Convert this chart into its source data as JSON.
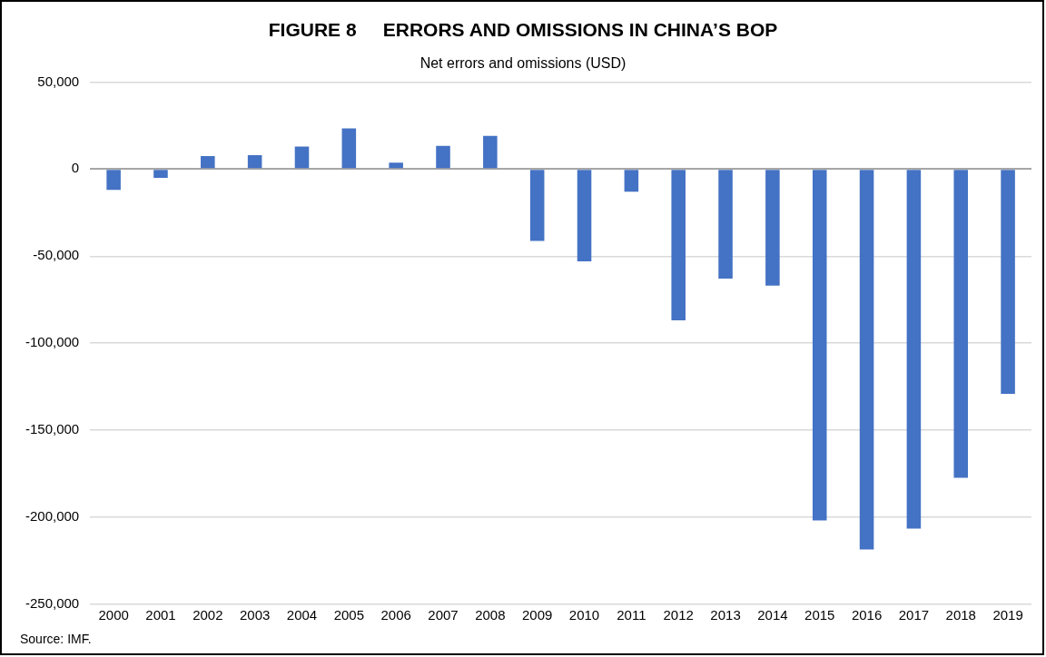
{
  "chart_data": {
    "type": "bar",
    "title": "FIGURE 8     ERRORS AND OMISSIONS IN CHINA’S BOP",
    "subtitle": "Net errors and omissions (USD)",
    "categories": [
      "2000",
      "2001",
      "2002",
      "2003",
      "2004",
      "2005",
      "2006",
      "2007",
      "2008",
      "2009",
      "2010",
      "2011",
      "2012",
      "2013",
      "2014",
      "2015",
      "2016",
      "2017",
      "2018",
      "2019"
    ],
    "values": [
      -12000,
      -5000,
      7500,
      8000,
      13000,
      23400,
      3700,
      13300,
      19100,
      -41200,
      -53000,
      -13000,
      -86900,
      -62900,
      -66900,
      -201800,
      -218500,
      -206500,
      -177300,
      -129100
    ],
    "color": "#4472c4",
    "ylim": [
      -250000,
      50000
    ],
    "yticks": [
      {
        "value": -250000,
        "label": "-250,000"
      },
      {
        "value": -200000,
        "label": "-200,000"
      },
      {
        "value": -150000,
        "label": "-150,000"
      },
      {
        "value": -100000,
        "label": "-100,000"
      },
      {
        "value": -50000,
        "label": "-50,000"
      },
      0,
      {
        "value": 50000,
        "label": "50,000"
      }
    ],
    "grid": "y",
    "annotations": [
      "Source: IMF."
    ]
  }
}
